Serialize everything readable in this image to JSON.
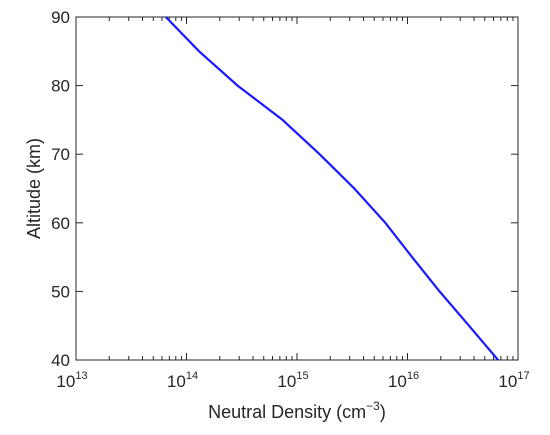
{
  "chart_data": {
    "type": "line",
    "xlabel": "Neutral Density",
    "xlabel_unit": "cm",
    "xlabel_unit_exp": "−3",
    "ylabel": "Altitude (km)",
    "xscale": "log",
    "xlim": [
      10000000000000.0,
      1e+17
    ],
    "ylim": [
      40,
      90
    ],
    "xticks": [
      {
        "base": "10",
        "exp": "13",
        "value": 10000000000000.0
      },
      {
        "base": "10",
        "exp": "14",
        "value": 100000000000000.0
      },
      {
        "base": "10",
        "exp": "15",
        "value": 1000000000000000.0
      },
      {
        "base": "10",
        "exp": "16",
        "value": 1e+16
      },
      {
        "base": "10",
        "exp": "17",
        "value": 1e+17
      }
    ],
    "yticks": [
      "40",
      "50",
      "60",
      "70",
      "80",
      "90"
    ],
    "grid": false,
    "line_color": "#1a1aff",
    "series": [
      {
        "points": [
          {
            "x": 65000000000000.0,
            "y": 90
          },
          {
            "x": 130000000000000.0,
            "y": 85
          },
          {
            "x": 290000000000000.0,
            "y": 80
          },
          {
            "x": 740000000000000.0,
            "y": 75
          },
          {
            "x": 1600000000000000.0,
            "y": 70
          },
          {
            "x": 3300000000000000.0,
            "y": 65
          },
          {
            "x": 6300000000000000.0,
            "y": 60
          },
          {
            "x": 1.1e+16,
            "y": 55
          },
          {
            "x": 1.95e+16,
            "y": 50
          },
          {
            "x": 3.6e+16,
            "y": 45
          },
          {
            "x": 6.6e+16,
            "y": 40
          }
        ]
      }
    ]
  }
}
